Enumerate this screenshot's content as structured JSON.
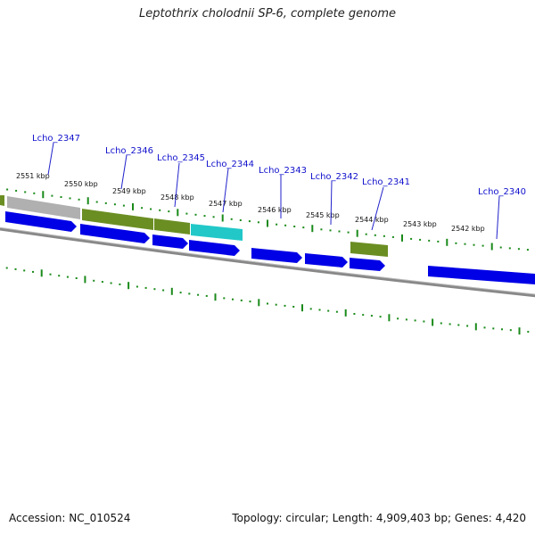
{
  "title": "Leptothrix cholodnii SP-6, complete genome",
  "footer": {
    "accession": "Accession: NC_010524",
    "summary": "Topology: circular; Length: 4,909,403 bp; Genes: 4,420"
  },
  "scale_labels": [
    "2551 kbp",
    "2550 kbp",
    "2549 kbp",
    "2548 kbp",
    "2547 kbp",
    "2546 kbp",
    "2545 kbp",
    "2544 kbp",
    "2543 kbp",
    "2542 kbp"
  ],
  "gene_labels": [
    "Lcho_2347",
    "Lcho_2346",
    "Lcho_2345",
    "Lcho_2344",
    "Lcho_2343",
    "Lcho_2342",
    "Lcho_2341",
    "Lcho_2340"
  ],
  "colors": {
    "tick": "#1a8a1a",
    "gene_blue": "#0000e6",
    "feature_green": "#6b8e23",
    "feature_gray": "#b0b0b0",
    "feature_cyan": "#22c8c8",
    "backbone": "#8a8a8a",
    "label_line": "#2222cc"
  }
}
